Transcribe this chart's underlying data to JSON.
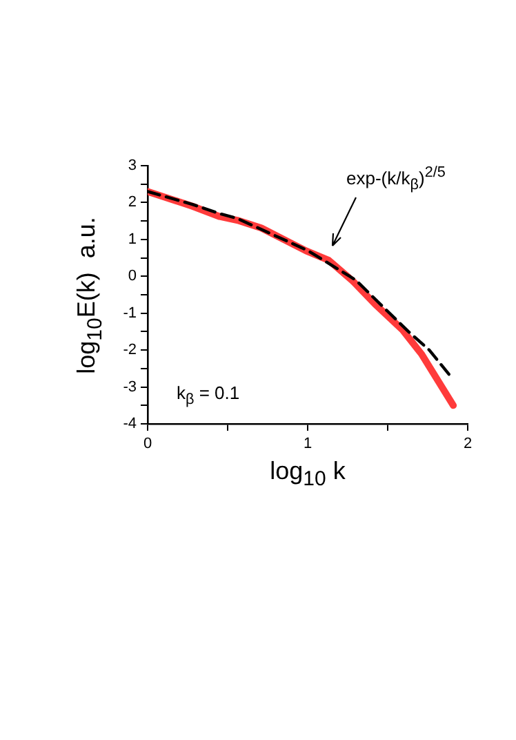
{
  "chart_data": {
    "type": "line",
    "xlabel": "log$_{10}$ k",
    "ylabel": "log$_{10}$E(k)  a.u.",
    "x": [
      0,
      0.28,
      0.45,
      0.56,
      0.71,
      0.99,
      1.13,
      1.28,
      1.42,
      1.59,
      1.71,
      1.82,
      1.91
    ],
    "series": [
      {
        "color": "#ff3b3b",
        "line_style": "solid",
        "values": [
          2.3,
          1.9,
          1.62,
          1.52,
          1.31,
          0.69,
          0.44,
          -0.12,
          -0.75,
          -1.44,
          -2.1,
          -2.87,
          -3.5
        ]
      },
      {
        "color": "#000000",
        "line_style": "dashed",
        "x": [
          0,
          0.28,
          0.45,
          0.56,
          1.0,
          1.3,
          1.5,
          1.63,
          1.76,
          1.9
        ],
        "values": [
          2.3,
          1.95,
          1.7,
          1.57,
          0.7,
          -0.1,
          -0.95,
          -1.5,
          -2.0,
          -2.75
        ]
      }
    ],
    "xlim": [
      0,
      2
    ],
    "xticks": [
      0,
      {
        "value": 0.5,
        "label": null
      },
      1,
      {
        "value": 1.5,
        "label": null
      },
      2
    ],
    "ylim": [
      -4,
      3
    ],
    "yticks": [
      -4,
      {
        "value": -3.5,
        "label": null
      },
      -3,
      {
        "value": -2.5,
        "label": null
      },
      -2,
      {
        "value": -1.5,
        "label": null
      },
      -1,
      {
        "value": -0.5,
        "label": null
      },
      0,
      {
        "value": 0.5,
        "label": null
      },
      1,
      {
        "value": 1.5,
        "label": null
      },
      2,
      {
        "value": 2.5,
        "label": null
      },
      3
    ],
    "grid": false,
    "legend": false,
    "marker": "none",
    "annotations": [
      "exp-(k/k$_{β}$)$^{2/5}$",
      "k$_{β}$ = 0.1"
    ]
  }
}
